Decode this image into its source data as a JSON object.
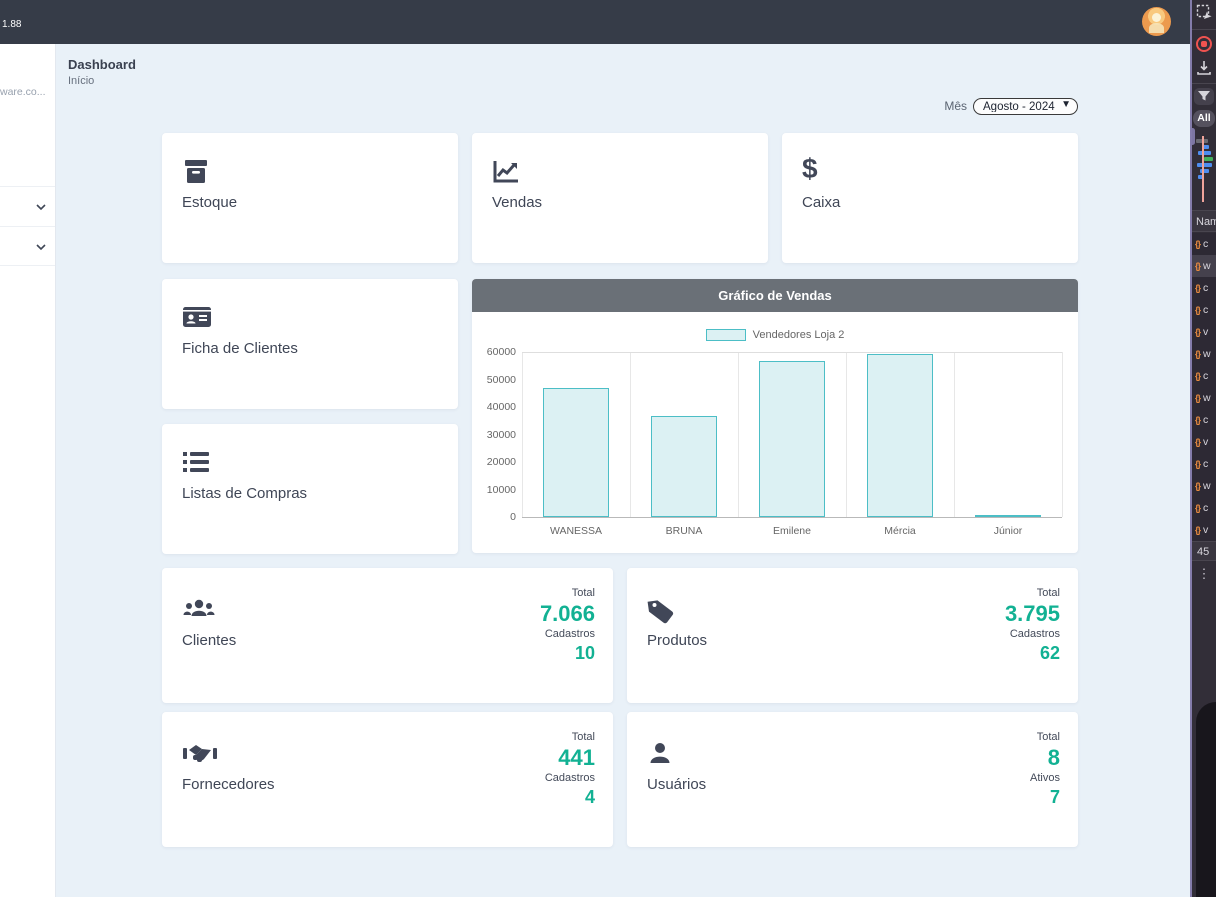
{
  "topbar": {
    "version": "1.88"
  },
  "sidebar": {
    "truncated_text": "ware.co..."
  },
  "page": {
    "title": "Dashboard",
    "breadcrumb": "Início"
  },
  "month_filter": {
    "label": "Mês",
    "selected": "Agosto - 2024"
  },
  "nav_cards": [
    {
      "label": "Estoque",
      "icon": "archive-box-icon"
    },
    {
      "label": "Vendas",
      "icon": "chart-line-icon"
    },
    {
      "label": "Caixa",
      "icon": "dollar-icon"
    },
    {
      "label": "Ficha de Clientes",
      "icon": "id-card-icon"
    },
    {
      "label": "Listas de Compras",
      "icon": "list-icon"
    }
  ],
  "chart_card": {
    "title": "Gráfico de Vendas"
  },
  "chart_data": {
    "type": "bar",
    "title": "Gráfico de Vendas",
    "legend": "Vendedores Loja 2",
    "categories": [
      "WANESSA",
      "BRUNA",
      "Emilene",
      "Mércia",
      "Júnior"
    ],
    "values": [
      47000,
      36800,
      56700,
      59300,
      400
    ],
    "ylim": [
      0,
      60000
    ],
    "ytick_step": 10000,
    "grid": "vertical-only",
    "legend_position": "top",
    "bar_fill": "#dcf1f3",
    "bar_border": "#4cbec6"
  },
  "stat_cards": [
    {
      "label": "Clientes",
      "icon": "users-icon",
      "rows": [
        {
          "caption": "Total",
          "value": "7.066"
        },
        {
          "caption": "Cadastros",
          "value": "10"
        }
      ]
    },
    {
      "label": "Produtos",
      "icon": "tag-icon",
      "rows": [
        {
          "caption": "Total",
          "value": "3.795"
        },
        {
          "caption": "Cadastros",
          "value": "62"
        }
      ]
    },
    {
      "label": "Fornecedores",
      "icon": "handshake-icon",
      "rows": [
        {
          "caption": "Total",
          "value": "441"
        },
        {
          "caption": "Cadastros",
          "value": "4"
        }
      ]
    },
    {
      "label": "Usuários",
      "icon": "user-icon",
      "rows": [
        {
          "caption": "Total",
          "value": "8"
        },
        {
          "caption": "Ativos",
          "value": "7"
        }
      ]
    }
  ],
  "devtools": {
    "all_label": "All",
    "name_header": "Nam",
    "request_count": "45",
    "script_icon_glyph": "{}",
    "requests": [
      "c",
      "w",
      "c",
      "c",
      "v",
      "w",
      "c",
      "w",
      "c",
      "v",
      "c",
      "w",
      "c",
      "v"
    ],
    "highlighted_index": 1
  },
  "colors": {
    "topbar": "#363c48",
    "main_bg": "#e9f1f8",
    "accent_teal": "#12b193",
    "chart_header": "#6a7077",
    "chart_bar_border": "#4cbec6",
    "devtools_orange": "#ea8b3f",
    "record_red": "#ef5350"
  }
}
